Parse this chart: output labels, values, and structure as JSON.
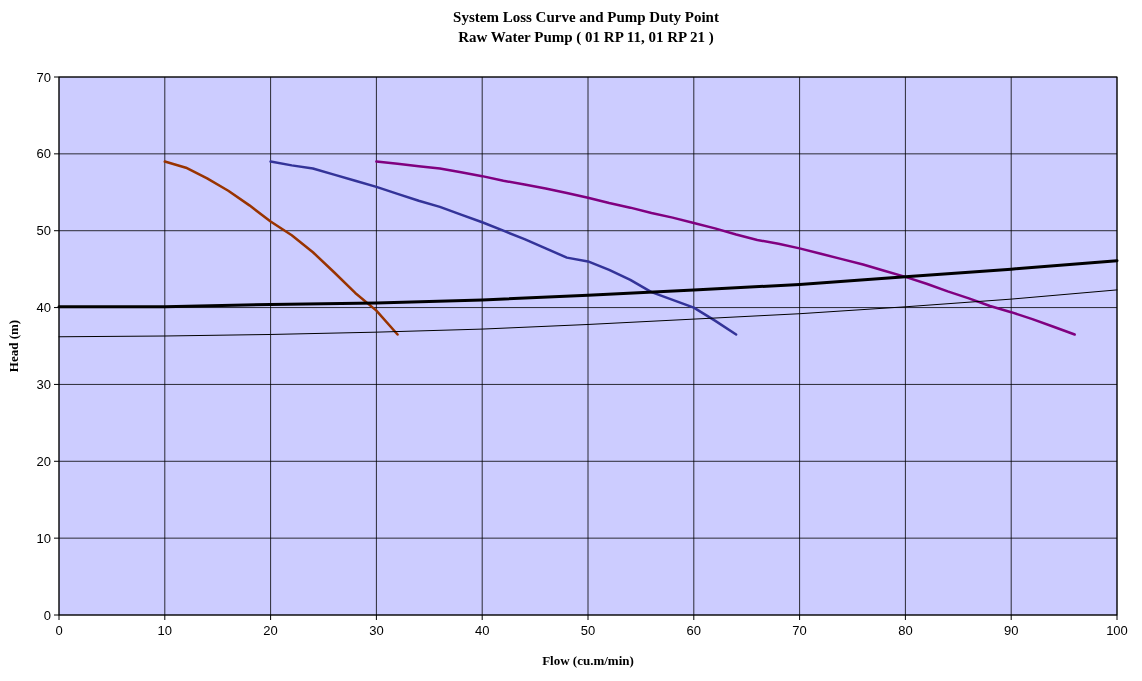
{
  "chart_data": {
    "type": "line",
    "title": "System Loss Curve and Pump Duty Point",
    "subtitle": "Raw Water Pump ( 01 RP 11, 01 RP 21 )",
    "xlabel": "Flow (cu.m/min)",
    "ylabel": "Head (m)",
    "xlim": [
      0,
      100
    ],
    "ylim": [
      0,
      70
    ],
    "xticks": [
      0,
      10,
      20,
      30,
      40,
      50,
      60,
      70,
      80,
      90,
      100
    ],
    "yticks": [
      0,
      10,
      20,
      30,
      40,
      50,
      60,
      70
    ],
    "grid": true,
    "marker": "none",
    "line_style": "solid",
    "series": [
      {
        "color": "#993300",
        "x": [
          10,
          12,
          14,
          16,
          18,
          20,
          22,
          24,
          26,
          28,
          30,
          32
        ],
        "values": [
          59,
          58.2,
          56.8,
          55.2,
          53.3,
          51.2,
          49.4,
          47.2,
          44.6,
          41.9,
          39.6,
          36.5
        ]
      },
      {
        "color": "#333399",
        "x": [
          20,
          22,
          24,
          26,
          28,
          30,
          32,
          34,
          36,
          38,
          40,
          42,
          44,
          46,
          48,
          50,
          52,
          54,
          56,
          58,
          60,
          62,
          64
        ],
        "values": [
          59,
          58.5,
          58.1,
          57.3,
          56.5,
          55.7,
          54.8,
          53.9,
          53.1,
          52.1,
          51.1,
          50,
          48.9,
          47.7,
          46.5,
          46,
          44.9,
          43.6,
          42,
          41,
          40,
          38.3,
          36.5
        ]
      },
      {
        "color": "#800080",
        "x": [
          30,
          32,
          34,
          36,
          38,
          40,
          42,
          44,
          46,
          48,
          50,
          52,
          54,
          56,
          58,
          60,
          62,
          64,
          66,
          68,
          70,
          72,
          74,
          76,
          78,
          80,
          82,
          84,
          86,
          88,
          90,
          92,
          94,
          96
        ],
        "values": [
          59,
          58.7,
          58.4,
          58.1,
          57.6,
          57.1,
          56.5,
          56,
          55.5,
          54.9,
          54.3,
          53.6,
          53,
          52.3,
          51.7,
          51,
          50.3,
          49.5,
          48.8,
          48.3,
          47.7,
          47,
          46.3,
          45.6,
          44.8,
          44,
          43.1,
          42.1,
          41.2,
          40.2,
          39.4,
          38.5,
          37.5,
          36.5
        ]
      },
      {
        "color": "#000000",
        "x": [
          0,
          10,
          20,
          30,
          40,
          50,
          60,
          70,
          80,
          90,
          100
        ],
        "values": [
          40.1,
          40.1,
          40.4,
          40.6,
          41,
          41.6,
          42.3,
          43,
          44,
          45,
          46.1
        ]
      },
      {
        "color": "#000000",
        "x": [
          0,
          10,
          20,
          30,
          40,
          50,
          60,
          70,
          80,
          90,
          100
        ],
        "values": [
          36.2,
          36.3,
          36.5,
          36.8,
          37.2,
          37.8,
          38.5,
          39.2,
          40.1,
          41.1,
          42.3
        ]
      }
    ]
  }
}
